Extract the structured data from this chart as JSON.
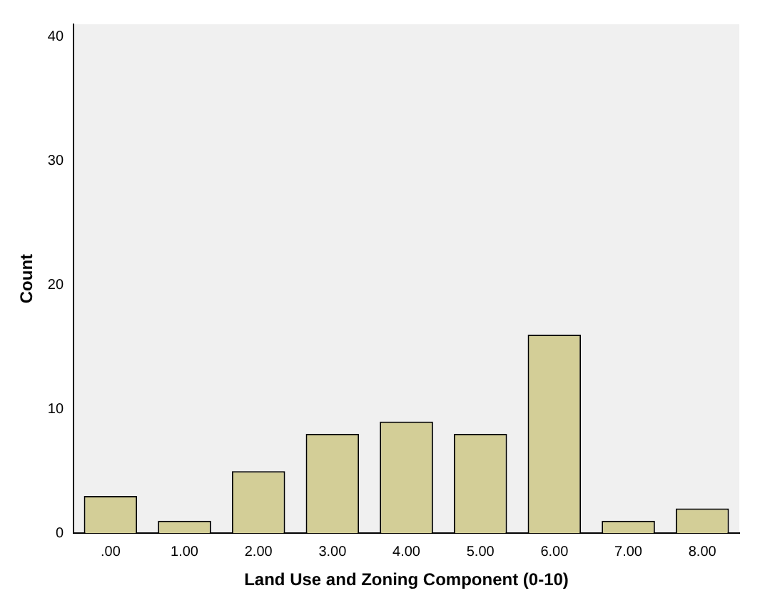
{
  "chart_data": {
    "type": "bar",
    "xlabel": "Land Use and Zoning Component (0-10)",
    "ylabel": "Count",
    "categories": [
      ".00",
      "1.00",
      "2.00",
      "3.00",
      "4.00",
      "5.00",
      "6.00",
      "7.00",
      "8.00"
    ],
    "values": [
      3,
      1,
      5,
      8,
      9,
      8,
      16,
      1,
      2
    ],
    "color": "#d3ce97",
    "ylim": [
      0,
      41
    ],
    "yticks": [
      0,
      10,
      20,
      30,
      40
    ],
    "grid": false
  }
}
